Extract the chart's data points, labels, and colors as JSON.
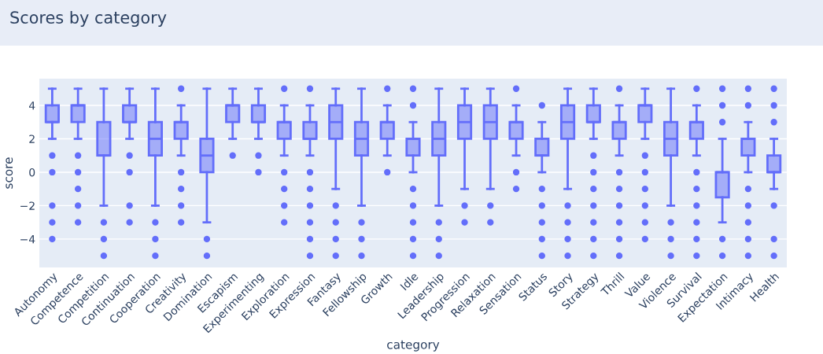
{
  "chart_data": {
    "type": "box",
    "title": "Scores by category",
    "xlabel": "category",
    "ylabel": "score",
    "categories": [
      "Autonomy",
      "Competence",
      "Competition",
      "Continuation",
      "Cooperation",
      "Creativity",
      "Domination",
      "Escapism",
      "Experimenting",
      "Exploration",
      "Expression",
      "Fantasy",
      "Fellowship",
      "Growth",
      "Idle",
      "Leadership",
      "Progression",
      "Relaxation",
      "Sensation",
      "Status",
      "Story",
      "Strategy",
      "Thrill",
      "Value",
      "Violence",
      "Survival",
      "Expectation",
      "Intimacy",
      "Health"
    ],
    "color": "#636efa",
    "ylim": [
      -5.7,
      5.6
    ],
    "yticks": [
      {
        "value": -4,
        "label": "−4"
      },
      {
        "value": -2,
        "label": "−2"
      },
      0,
      2,
      4
    ],
    "grid": "y",
    "boxes": [
      {
        "low": 2,
        "q1": 3,
        "median": 3,
        "q3": 4,
        "high": 5,
        "outliers": [
          1,
          0,
          -2,
          -3,
          -4
        ]
      },
      {
        "low": 2,
        "q1": 3,
        "median": 4,
        "q3": 4,
        "high": 5,
        "outliers": [
          1,
          0,
          -1,
          -2,
          -3
        ]
      },
      {
        "low": -2,
        "q1": 1,
        "median": 1,
        "q3": 3,
        "high": 5,
        "outliers": [
          -3,
          -4,
          -5
        ]
      },
      {
        "low": 2,
        "q1": 3,
        "median": 3,
        "q3": 4,
        "high": 5,
        "outliers": [
          1,
          0,
          -2,
          -3
        ]
      },
      {
        "low": -2,
        "q1": 1,
        "median": 2,
        "q3": 3,
        "high": 5,
        "outliers": [
          -3,
          -4,
          -5
        ]
      },
      {
        "low": 1,
        "q1": 2,
        "median": 3,
        "q3": 3,
        "high": 4,
        "outliers": [
          5,
          0,
          -1,
          -2,
          -3
        ]
      },
      {
        "low": -3,
        "q1": 0,
        "median": 1,
        "q3": 2,
        "high": 5,
        "outliers": [
          -4,
          -5
        ]
      },
      {
        "low": 2,
        "q1": 3,
        "median": 4,
        "q3": 4,
        "high": 5,
        "outliers": [
          1
        ]
      },
      {
        "low": 2,
        "q1": 3,
        "median": 3,
        "q3": 4,
        "high": 5,
        "outliers": [
          1,
          0
        ]
      },
      {
        "low": 1,
        "q1": 2,
        "median": 3,
        "q3": 3,
        "high": 4,
        "outliers": [
          5,
          0,
          -1,
          -2,
          -3
        ]
      },
      {
        "low": 1,
        "q1": 2,
        "median": 2,
        "q3": 3,
        "high": 4,
        "outliers": [
          5,
          0,
          -1,
          -2,
          -3,
          -4,
          -5
        ]
      },
      {
        "low": -1,
        "q1": 2,
        "median": 3,
        "q3": 4,
        "high": 5,
        "outliers": [
          -2,
          -3,
          -4,
          -5
        ]
      },
      {
        "low": -2,
        "q1": 1,
        "median": 2,
        "q3": 3,
        "high": 5,
        "outliers": [
          -3,
          -4,
          -5
        ]
      },
      {
        "low": 1,
        "q1": 2,
        "median": 3,
        "q3": 3,
        "high": 4,
        "outliers": [
          5,
          0
        ]
      },
      {
        "low": 0,
        "q1": 1,
        "median": 2,
        "q3": 2,
        "high": 3,
        "outliers": [
          5,
          4,
          -1,
          -2,
          -3,
          -4,
          -5
        ]
      },
      {
        "low": -2,
        "q1": 1,
        "median": 2,
        "q3": 3,
        "high": 5,
        "outliers": [
          -3,
          -4,
          -5
        ]
      },
      {
        "low": -1,
        "q1": 2,
        "median": 3,
        "q3": 4,
        "high": 5,
        "outliers": [
          -2,
          -3
        ]
      },
      {
        "low": -1,
        "q1": 2,
        "median": 3,
        "q3": 4,
        "high": 5,
        "outliers": [
          -2,
          -3
        ]
      },
      {
        "low": 1,
        "q1": 2,
        "median": 3,
        "q3": 3,
        "high": 4,
        "outliers": [
          5,
          0,
          -1
        ]
      },
      {
        "low": 0,
        "q1": 1,
        "median": 1,
        "q3": 2,
        "high": 3,
        "outliers": [
          4,
          -1,
          -2,
          -3,
          -4,
          -5
        ]
      },
      {
        "low": -1,
        "q1": 2,
        "median": 3,
        "q3": 4,
        "high": 5,
        "outliers": [
          -2,
          -3,
          -4,
          -5
        ]
      },
      {
        "low": 2,
        "q1": 3,
        "median": 3,
        "q3": 4,
        "high": 5,
        "outliers": [
          1,
          0,
          -1,
          -2,
          -3,
          -4,
          -5
        ]
      },
      {
        "low": 1,
        "q1": 2,
        "median": 3,
        "q3": 3,
        "high": 4,
        "outliers": [
          5,
          0,
          -1,
          -2,
          -3,
          -4,
          -5
        ]
      },
      {
        "low": 2,
        "q1": 3,
        "median": 4,
        "q3": 4,
        "high": 5,
        "outliers": [
          1,
          0,
          -1,
          -2,
          -3,
          -4
        ]
      },
      {
        "low": -2,
        "q1": 1,
        "median": 2,
        "q3": 3,
        "high": 5,
        "outliers": [
          -3,
          -4,
          -5
        ]
      },
      {
        "low": 1,
        "q1": 2,
        "median": 3,
        "q3": 3,
        "high": 4,
        "outliers": [
          5,
          0,
          -1,
          -2,
          -3,
          -4,
          -5
        ]
      },
      {
        "low": -3,
        "q1": -1.5,
        "median": 0,
        "q3": 0,
        "high": 2,
        "outliers": [
          5,
          4,
          3,
          -4,
          -5
        ]
      },
      {
        "low": 0,
        "q1": 1,
        "median": 2,
        "q3": 2,
        "high": 3,
        "outliers": [
          5,
          4,
          -1,
          -2,
          -3,
          -4,
          -5
        ]
      },
      {
        "low": -1,
        "q1": 0,
        "median": 0,
        "q3": 1,
        "high": 2,
        "outliers": [
          5,
          4,
          3,
          -2,
          -4,
          -5
        ]
      }
    ]
  }
}
